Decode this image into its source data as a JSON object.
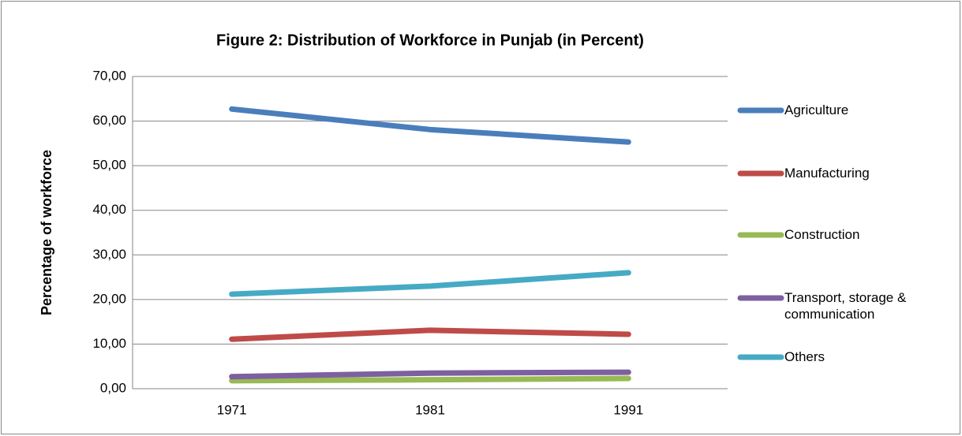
{
  "chart_data": {
    "type": "line",
    "title": "Figure 2: Distribution of Workforce in Punjab (in Percent)",
    "y_label": "Percentage of workforce",
    "categories": [
      "1971",
      "1981",
      "1991"
    ],
    "series": [
      {
        "name": "Agriculture",
        "color": "#4a7ebb",
        "values": [
          62.7,
          58.1,
          55.3
        ]
      },
      {
        "name": "Manufacturing",
        "color": "#be4b48",
        "values": [
          11.1,
          13.1,
          12.2
        ]
      },
      {
        "name": "Construction",
        "color": "#98b954",
        "values": [
          1.8,
          2.0,
          2.3
        ]
      },
      {
        "name": "Transport,  storage & communication",
        "color": "#7d60a0",
        "values": [
          2.7,
          3.5,
          3.7
        ]
      },
      {
        "name": "Others",
        "color": "#46aac5",
        "values": [
          21.2,
          23.0,
          26.0
        ]
      }
    ],
    "ylim": [
      0,
      70
    ],
    "yticks": [
      {
        "value": 0,
        "label": "0,00"
      },
      {
        "value": 10,
        "label": "10,00"
      },
      {
        "value": 20,
        "label": "20,00"
      },
      {
        "value": 30,
        "label": "30,00"
      },
      {
        "value": 40,
        "label": "40,00"
      },
      {
        "value": 50,
        "label": "50,00"
      },
      {
        "value": 60,
        "label": "60,00"
      },
      {
        "value": 70,
        "label": "70,00"
      }
    ],
    "grid": true,
    "legend": "right"
  }
}
